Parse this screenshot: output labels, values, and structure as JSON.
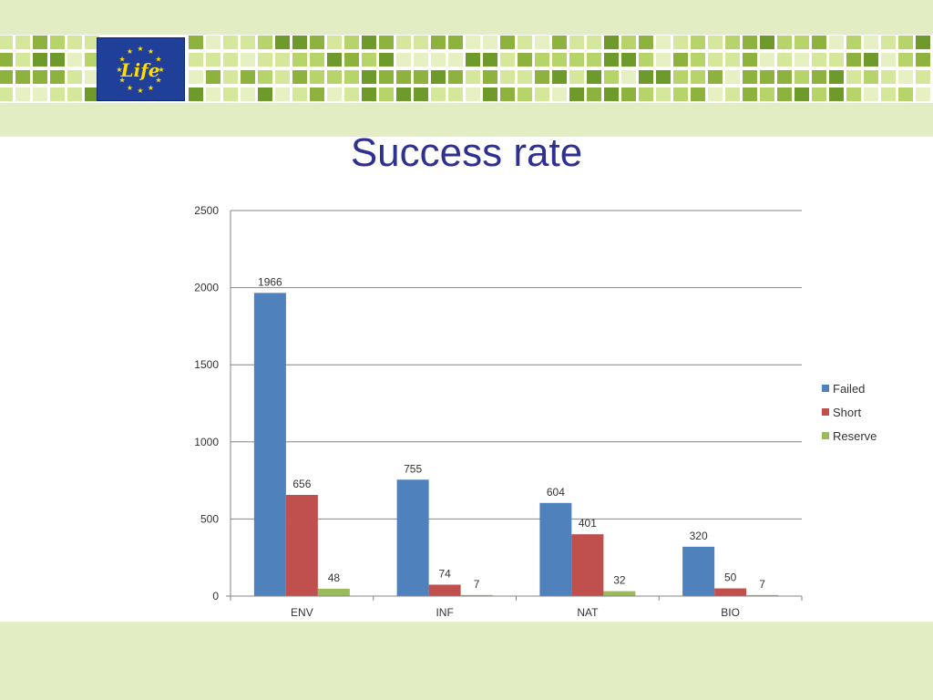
{
  "slide": {
    "title": "Success rate",
    "header_background": "#e2edc4",
    "footer_background": "#e2edc4",
    "title_color": "#2e3192",
    "logo_text": "Life",
    "mosaic_colors": [
      "#8db23d",
      "#b7d46a",
      "#d5e79a",
      "#6e9a2c",
      "#e6f0c2"
    ]
  },
  "chart_data": {
    "type": "bar",
    "categories": [
      "ENV",
      "INF",
      "NAT",
      "BIO"
    ],
    "series": [
      {
        "name": "Failed",
        "color": "#4f81bd",
        "values": [
          1966,
          755,
          604,
          320
        ]
      },
      {
        "name": "Short",
        "color": "#c0504d",
        "values": [
          656,
          74,
          401,
          50
        ]
      },
      {
        "name": "Reserve",
        "color": "#9bbb59",
        "values": [
          48,
          7,
          32,
          7
        ]
      }
    ],
    "ylim": [
      0,
      2500
    ],
    "yticks": [
      0,
      500,
      1000,
      1500,
      2000,
      2500
    ],
    "grid": true,
    "legend_position": "right"
  }
}
